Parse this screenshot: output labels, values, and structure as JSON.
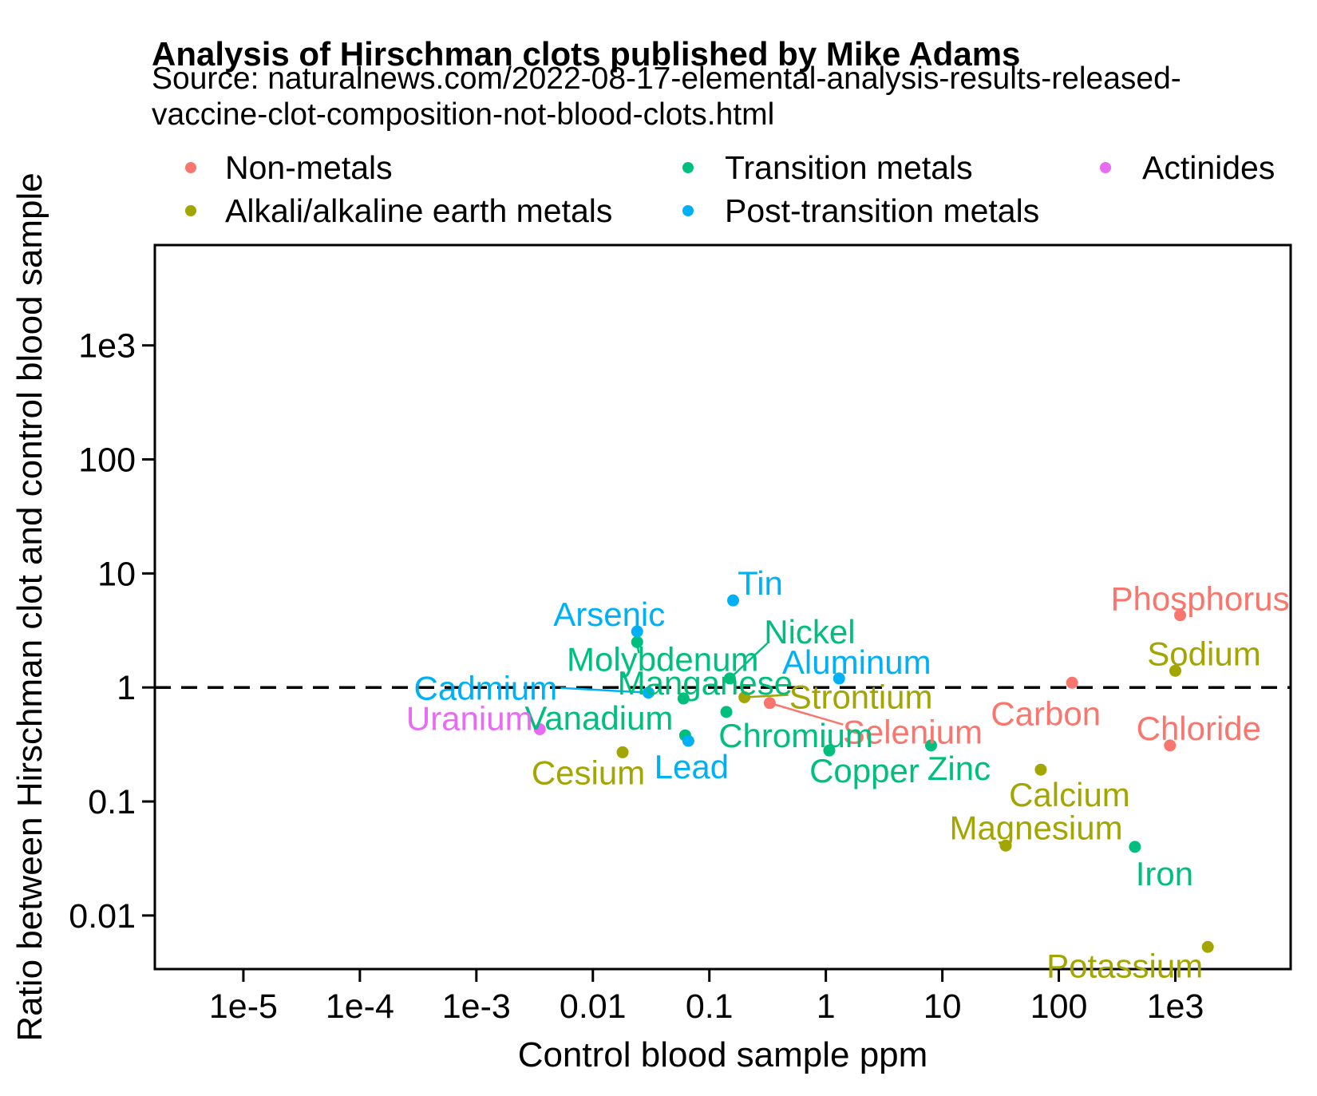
{
  "chart_data": {
    "type": "scatter",
    "title": "Analysis of Hirschman clots published by Mike Adams",
    "subtitle_lines": [
      "Source: naturalnews.com/2022-08-17-elemental-analysis-results-released-",
      "vaccine-clot-composition-not-blood-clots.html"
    ],
    "xlabel": "Control blood sample ppm",
    "ylabel": "Ratio between Hirschman clot and control blood sample",
    "x_scale": "log",
    "y_scale": "log",
    "grid": false,
    "legend_position": "top",
    "reference_line_y": 1,
    "x_range_log10": [
      -5.76,
      3.99
    ],
    "y_range_log10": [
      -2.47,
      3.88
    ],
    "x_ticks": [
      {
        "value": 1e-05,
        "label": "1e-5"
      },
      {
        "value": 0.0001,
        "label": "1e-4"
      },
      {
        "value": 0.001,
        "label": "1e-3"
      },
      {
        "value": 0.01,
        "label": "0.01"
      },
      {
        "value": 0.1,
        "label": "0.1"
      },
      {
        "value": 1,
        "label": "1"
      },
      {
        "value": 10,
        "label": "10"
      },
      {
        "value": 100,
        "label": "100"
      },
      {
        "value": 1000,
        "label": "1e3"
      }
    ],
    "y_ticks": [
      {
        "value": 1000,
        "label": "1e3"
      },
      {
        "value": 100,
        "label": "100"
      },
      {
        "value": 10,
        "label": "10"
      },
      {
        "value": 1,
        "label": "1"
      },
      {
        "value": 0.1,
        "label": "0.1"
      },
      {
        "value": 0.01,
        "label": "0.01"
      }
    ],
    "series": [
      {
        "name": "Non-metals",
        "color": "#F8766D",
        "points": [
          {
            "name": "Carbon",
            "x": 130,
            "ratio": 1.1,
            "label_dx": -33,
            "label_dy": 38
          },
          {
            "name": "Phosphorus",
            "x": 1100,
            "ratio": 4.3,
            "label_dx": 25,
            "label_dy": -21
          },
          {
            "name": "Chloride",
            "x": 900,
            "ratio": 0.31,
            "label_dx": 36,
            "label_dy": -22
          },
          {
            "name": "Selenium",
            "x": 0.33,
            "ratio": 0.73,
            "label_dx": 179,
            "label_dy": 36,
            "leader_dx": 92,
            "leader_dy": 27
          }
        ]
      },
      {
        "name": "Alkali/alkaline earth metals",
        "color": "#A3A500",
        "points": [
          {
            "name": "Sodium",
            "x": 1000,
            "ratio": 1.4,
            "label_dx": 36,
            "label_dy": -22
          },
          {
            "name": "Potassium",
            "x": 1900,
            "ratio": 0.0053,
            "label_dx": -104,
            "label_dy": 23
          },
          {
            "name": "Calcium",
            "x": 70,
            "ratio": 0.19,
            "label_dx": 36,
            "label_dy": 31
          },
          {
            "name": "Magnesium",
            "x": 35,
            "ratio": 0.041,
            "label_dx": 38,
            "label_dy": -23
          },
          {
            "name": "Cesium",
            "x": 0.018,
            "ratio": 0.27,
            "label_dx": -43,
            "label_dy": 25
          },
          {
            "name": "Strontium",
            "x": 0.2,
            "ratio": 0.82,
            "label_dx": 146,
            "label_dy": -1,
            "leader_dx": 55,
            "leader_dy": -3
          }
        ]
      },
      {
        "name": "Transition metals",
        "color": "#00BF7D",
        "points": [
          {
            "name": "Molybdenum",
            "x": 0.024,
            "ratio": 2.5,
            "label_dx": 32,
            "label_dy": 21,
            "leader_dx": 2,
            "leader_dy": 14
          },
          {
            "name": "Manganese",
            "x": 0.06,
            "ratio": 0.8,
            "label_dx": 27,
            "label_dy": -20
          },
          {
            "name": "Nickel",
            "x": 0.15,
            "ratio": 1.2,
            "label_dx": 100,
            "label_dy": -59,
            "leader_dx": 47,
            "leader_dy": -44
          },
          {
            "name": "Chromium",
            "x": 0.14,
            "ratio": 0.61,
            "label_dx": 87,
            "label_dy": 29
          },
          {
            "name": "Vanadium",
            "x": 0.062,
            "ratio": 0.38,
            "label_dx": -108,
            "label_dy": -22
          },
          {
            "name": "Copper",
            "x": 1.07,
            "ratio": 0.28,
            "label_dx": 44,
            "label_dy": 25
          },
          {
            "name": "Zinc",
            "x": 8,
            "ratio": 0.31,
            "label_dx": 35,
            "label_dy": 28
          },
          {
            "name": "Iron",
            "x": 450,
            "ratio": 0.04,
            "label_dx": 37,
            "label_dy": 33
          }
        ]
      },
      {
        "name": "Post-transition metals",
        "color": "#00B0F6",
        "points": [
          {
            "name": "Tin",
            "x": 0.16,
            "ratio": 5.8,
            "label_dx": 34,
            "label_dy": -22
          },
          {
            "name": "Arsenic",
            "x": 0.024,
            "ratio": 3.1,
            "label_dx": -35,
            "label_dy": -22
          },
          {
            "name": "Cadmium",
            "x": 0.03,
            "ratio": 0.9,
            "label_dx": -204,
            "label_dy": -6,
            "leader_dx": -110,
            "leader_dy": -6
          },
          {
            "name": "Aluminum",
            "x": 1.3,
            "ratio": 1.2,
            "label_dx": 22,
            "label_dy": -21
          },
          {
            "name": "Lead",
            "x": 0.066,
            "ratio": 0.34,
            "label_dx": 4,
            "label_dy": 32
          }
        ]
      },
      {
        "name": "Actinides",
        "color": "#E76BF3",
        "points": [
          {
            "name": "Uranium",
            "x": 0.0035,
            "ratio": 0.43,
            "label_dx": -88,
            "label_dy": -14
          }
        ]
      }
    ]
  }
}
